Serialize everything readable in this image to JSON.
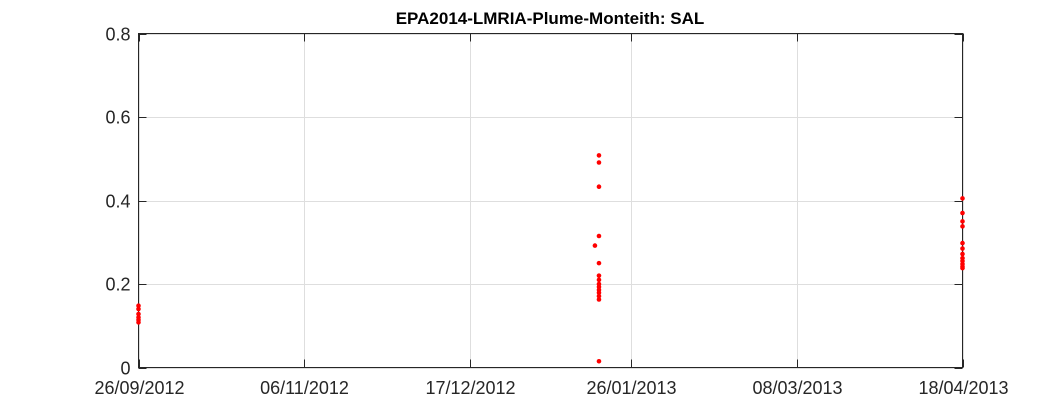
{
  "chart_data": {
    "type": "scatter",
    "title": "EPA2014-LMRIA-Plume-Monteith: SAL",
    "xlabel": "",
    "ylabel": "",
    "x_type": "date",
    "xlim": [
      "2012-09-26",
      "2013-04-18"
    ],
    "ylim": [
      0,
      0.8
    ],
    "x_ticks": [
      {
        "date": "2012-09-26",
        "label": "26/09/2012"
      },
      {
        "date": "2012-11-06",
        "label": "06/11/2012"
      },
      {
        "date": "2012-12-17",
        "label": "17/12/2012"
      },
      {
        "date": "2013-01-26",
        "label": "26/01/2013"
      },
      {
        "date": "2013-03-08",
        "label": "08/03/2013"
      },
      {
        "date": "2013-04-18",
        "label": "18/04/2013"
      }
    ],
    "y_ticks": [
      {
        "value": 0,
        "label": "0"
      },
      {
        "value": 0.2,
        "label": "0.2"
      },
      {
        "value": 0.4,
        "label": "0.4"
      },
      {
        "value": 0.6,
        "label": "0.6"
      },
      {
        "value": 0.8,
        "label": "0.8"
      }
    ],
    "grid": true,
    "marker_color": "#ff0000",
    "series": [
      {
        "points": [
          {
            "x": "2012-09-26",
            "y": 0.148
          },
          {
            "x": "2012-09-26",
            "y": 0.14
          },
          {
            "x": "2012-09-26",
            "y": 0.128
          },
          {
            "x": "2012-09-26",
            "y": 0.12
          },
          {
            "x": "2012-09-26",
            "y": 0.114
          },
          {
            "x": "2012-09-26",
            "y": 0.108
          },
          {
            "x": "2013-01-18",
            "y": 0.508
          },
          {
            "x": "2013-01-18",
            "y": 0.491
          },
          {
            "x": "2013-01-18",
            "y": 0.433
          },
          {
            "x": "2013-01-18",
            "y": 0.315
          },
          {
            "x": "2013-01-17",
            "y": 0.292
          },
          {
            "x": "2013-01-18",
            "y": 0.25
          },
          {
            "x": "2013-01-18",
            "y": 0.22
          },
          {
            "x": "2013-01-18",
            "y": 0.21
          },
          {
            "x": "2013-01-18",
            "y": 0.2
          },
          {
            "x": "2013-01-18",
            "y": 0.193
          },
          {
            "x": "2013-01-18",
            "y": 0.186
          },
          {
            "x": "2013-01-18",
            "y": 0.179
          },
          {
            "x": "2013-01-18",
            "y": 0.171
          },
          {
            "x": "2013-01-18",
            "y": 0.163
          },
          {
            "x": "2013-01-18",
            "y": 0.015
          },
          {
            "x": "2013-04-18",
            "y": 0.405
          },
          {
            "x": "2013-04-18",
            "y": 0.37
          },
          {
            "x": "2013-04-18",
            "y": 0.35
          },
          {
            "x": "2013-04-18",
            "y": 0.338
          },
          {
            "x": "2013-04-18",
            "y": 0.298
          },
          {
            "x": "2013-04-18",
            "y": 0.285
          },
          {
            "x": "2013-04-18",
            "y": 0.272
          },
          {
            "x": "2013-04-18",
            "y": 0.262
          },
          {
            "x": "2013-04-18",
            "y": 0.255
          },
          {
            "x": "2013-04-18",
            "y": 0.248
          },
          {
            "x": "2013-04-18",
            "y": 0.242
          },
          {
            "x": "2013-04-18",
            "y": 0.238
          }
        ]
      }
    ]
  }
}
